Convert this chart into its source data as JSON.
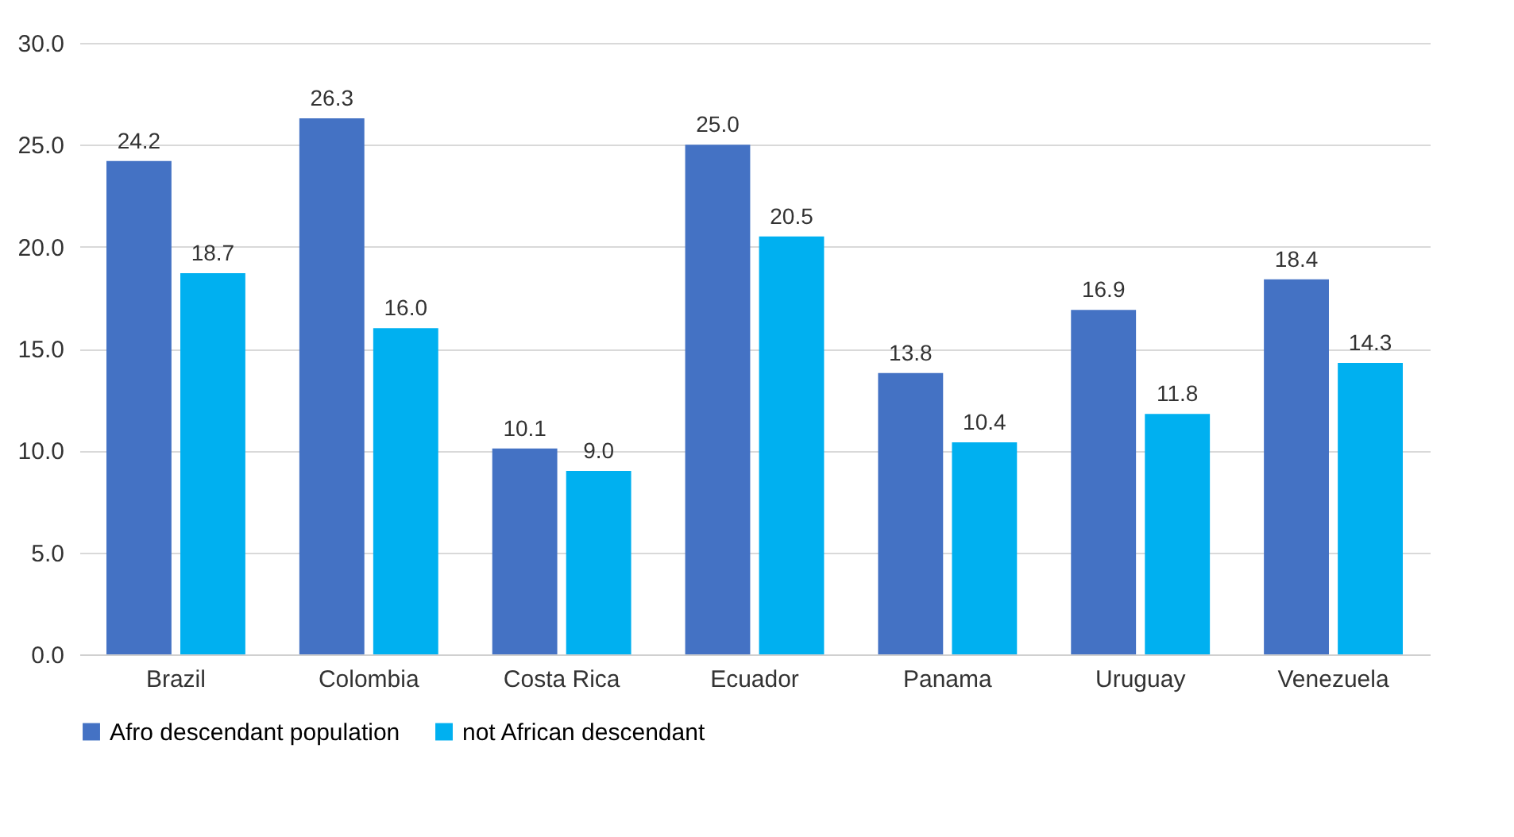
{
  "chart_data": {
    "type": "bar",
    "categories": [
      "Brazil",
      "Colombia",
      "Costa Rica",
      "Ecuador",
      "Panama",
      "Uruguay",
      "Venezuela"
    ],
    "series": [
      {
        "name": "Afro descendant population",
        "color": "#4472c4",
        "values": [
          24.2,
          26.3,
          10.1,
          25.0,
          13.8,
          16.9,
          18.4
        ],
        "value_labels": [
          "24.2",
          "26.3",
          "10.1",
          "25.0",
          "13.8",
          "16.9",
          "18.4"
        ]
      },
      {
        "name": "not African descendant",
        "color": "#00b0f0",
        "values": [
          18.7,
          16.0,
          9.0,
          20.5,
          10.4,
          11.8,
          14.3
        ],
        "value_labels": [
          "18.7",
          "16.0",
          "9.0",
          "20.5",
          "10.4",
          "11.8",
          "14.3"
        ]
      }
    ],
    "ylim": [
      0,
      30
    ],
    "yticks": [
      {
        "value": 0,
        "label": "0.0"
      },
      {
        "value": 5,
        "label": "5.0"
      },
      {
        "value": 10,
        "label": "10.0"
      },
      {
        "value": 15,
        "label": "15.0"
      },
      {
        "value": 20,
        "label": "20.0"
      },
      {
        "value": 25,
        "label": "25.0"
      },
      {
        "value": 30,
        "label": "30.0"
      }
    ],
    "grid": "y",
    "legend": "bottom"
  }
}
